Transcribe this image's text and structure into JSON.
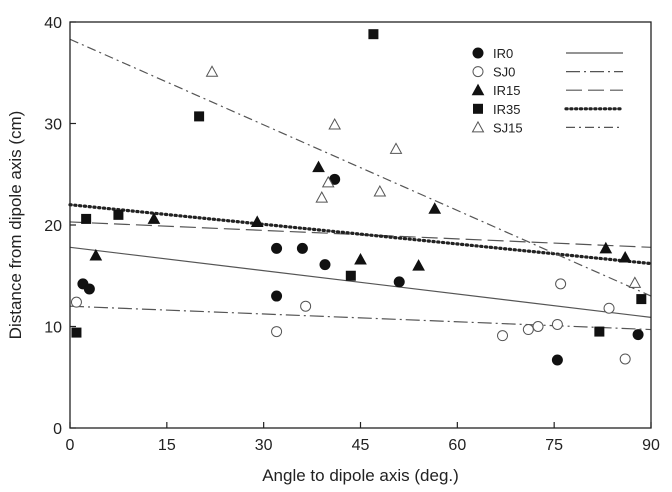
{
  "chart_data": {
    "type": "scatter",
    "title": "",
    "xlabel": "Angle to dipole axis (deg.)",
    "ylabel": "Distance from dipole axis (cm)",
    "xlim": [
      0,
      90
    ],
    "ylim": [
      0,
      40
    ],
    "xticks": [
      0,
      15,
      30,
      45,
      60,
      75,
      90
    ],
    "yticks": [
      0,
      10,
      20,
      30,
      40
    ],
    "grid": false,
    "legend_position": "top-right",
    "series": [
      {
        "name": "IR0",
        "marker": "filled-circle",
        "line_style": "solid",
        "points": [
          [
            2,
            14.2
          ],
          [
            3,
            13.7
          ],
          [
            32,
            17.7
          ],
          [
            32,
            13.0
          ],
          [
            36,
            17.7
          ],
          [
            39.5,
            16.1
          ],
          [
            41,
            24.5
          ],
          [
            51,
            14.4
          ],
          [
            75.5,
            6.7
          ],
          [
            88,
            9.2
          ]
        ],
        "trend": [
          [
            0,
            17.8
          ],
          [
            90,
            10.9
          ]
        ]
      },
      {
        "name": "SJ0",
        "marker": "open-circle",
        "line_style": "long-dash-dot",
        "points": [
          [
            1,
            12.4
          ],
          [
            32,
            9.5
          ],
          [
            36.5,
            12.0
          ],
          [
            67,
            9.1
          ],
          [
            71,
            9.7
          ],
          [
            72.5,
            10.0
          ],
          [
            75.5,
            10.2
          ],
          [
            76,
            14.2
          ],
          [
            83.5,
            11.8
          ],
          [
            86,
            6.8
          ]
        ],
        "trend": [
          [
            0,
            12.0
          ],
          [
            90,
            9.7
          ]
        ]
      },
      {
        "name": "IR15",
        "marker": "filled-triangle",
        "line_style": "long-dash",
        "points": [
          [
            4,
            17.0
          ],
          [
            13,
            20.6
          ],
          [
            29,
            20.3
          ],
          [
            38.5,
            25.7
          ],
          [
            45,
            16.6
          ],
          [
            54,
            16.0
          ],
          [
            56.5,
            21.6
          ],
          [
            83,
            17.7
          ],
          [
            86,
            16.8
          ]
        ],
        "trend": [
          [
            0,
            20.3
          ],
          [
            90,
            17.8
          ]
        ]
      },
      {
        "name": "IR35",
        "marker": "filled-square",
        "line_style": "dotted",
        "points": [
          [
            1,
            9.4
          ],
          [
            2.5,
            20.6
          ],
          [
            7.5,
            21.0
          ],
          [
            20,
            30.7
          ],
          [
            43.5,
            15.0
          ],
          [
            47,
            38.8
          ],
          [
            82,
            9.5
          ],
          [
            88.5,
            12.7
          ]
        ],
        "trend": [
          [
            0,
            22.0
          ],
          [
            90,
            16.2
          ]
        ]
      },
      {
        "name": "SJ15",
        "marker": "open-triangle",
        "line_style": "dash-dot",
        "points": [
          [
            22,
            35.1
          ],
          [
            39,
            22.7
          ],
          [
            40,
            24.2
          ],
          [
            41,
            29.9
          ],
          [
            48,
            23.3
          ],
          [
            50.5,
            27.5
          ],
          [
            87.5,
            14.3
          ]
        ],
        "trend": [
          [
            0,
            38.3
          ],
          [
            90,
            13.0
          ]
        ]
      }
    ]
  }
}
